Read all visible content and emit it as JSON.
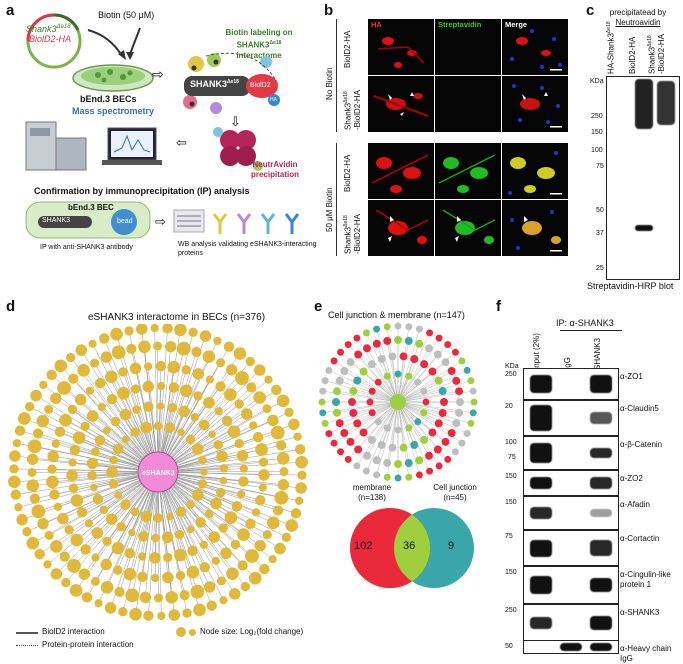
{
  "panels": {
    "a": "a",
    "b": "b",
    "c": "c",
    "d": "d",
    "e": "e",
    "f": "f"
  },
  "panel_a": {
    "plasmid_line1": "Shank3",
    "plasmid_sup1": "Δe18",
    "plasmid_line2": "-BiolD2-HA",
    "biotin": "Biotin (50 μM)",
    "cells": "bEnd.3 BECs",
    "biotin_labeling": "Biotin labeling on SHANK3",
    "biotin_labeling_sup": "Δe18",
    "biotin_labeling_2": "interactome",
    "shank3_label": "SHANK3",
    "shank3_sup": "Δe18",
    "biold2": "BiolD2",
    "ha": "HA",
    "mass_spec": "Mass spectrometry",
    "neutravidin": "NeutrAvidin precipitation",
    "confirm": "Confirmation by immunoprecipitation (IP) analysis",
    "bend3_bec": "bEnd.3 BEC",
    "shank3_small": "SHANK3",
    "bead": "bead",
    "ip_caption": "IP with anti-SHANK3 antibody",
    "wb_caption": "WB analysis validating eSHANK3-interacting proteins"
  },
  "panel_b": {
    "col_headers": [
      "HA",
      "Streptavidin",
      "Merge"
    ],
    "group_labels": [
      "No Biotin",
      "50 μM Biotin"
    ],
    "row_labels": [
      "BiolD2-HA",
      "Shank3",
      "BiolD2-HA",
      "Shank3"
    ],
    "row_label_sup": "Δe18",
    "row_label_suffix": "-BiolD2-HA"
  },
  "panel_c": {
    "title_1": "precipitatead by",
    "title_2": "Neutroavidin",
    "lanes": [
      "HA-Shank3",
      "BiolD2-HA",
      "Shank3"
    ],
    "lane_sup": "Δe18",
    "lane3_suffix": "-BiolD2-HA",
    "kda": "KDa",
    "markers": [
      "250",
      "150",
      "100",
      "75",
      "50",
      "37",
      "25"
    ],
    "caption": "Streptavidin-HRP blot"
  },
  "panel_d": {
    "title": "eSHANK3 interactome in BECs (n=376)",
    "center": "eSHANK3",
    "legend_solid": "BiolD2 interaction",
    "legend_dotted": "Protein-protein interaction",
    "legend_size": "Node size: Log₂(fold change)",
    "node_color": "#e0b83c",
    "center_color": "#f28ad8"
  },
  "panel_e": {
    "title": "Cell junction & membrane (n=147)",
    "venn_left_label": "membrane",
    "venn_left_n": "(n=138)",
    "venn_right_label": "Cell junction",
    "venn_right_n": "(n=45)",
    "venn_left_only": "102",
    "venn_overlap": "36",
    "venn_right_only": "9",
    "colors": {
      "red": "#ea2a3a",
      "green": "#9fcf3c",
      "teal": "#3aa6aa",
      "grey": "#bdbdbd"
    }
  },
  "panel_f": {
    "ip_header": "IP: α-SHANK3",
    "lanes": [
      "Input (2%)",
      "IgG",
      "SHANK3"
    ],
    "kda": "KDa",
    "rows": [
      {
        "marker": "250",
        "label": "α-ZO1"
      },
      {
        "marker": "20",
        "label": "α-Claudin5"
      },
      {
        "marker": "100",
        "marker2": "75",
        "label": "α-β-Catenin"
      },
      {
        "marker": "150",
        "label": "α-ZO2"
      },
      {
        "marker": "150",
        "label": "α-Afadin"
      },
      {
        "marker": "75",
        "label": "α-Cortactin"
      },
      {
        "marker": "150",
        "label": "α-Cingulin-like protein 1"
      },
      {
        "marker": "250",
        "label": "α-SHANK3"
      },
      {
        "marker": "50",
        "label": "α-Heavy chain IgG"
      }
    ]
  }
}
